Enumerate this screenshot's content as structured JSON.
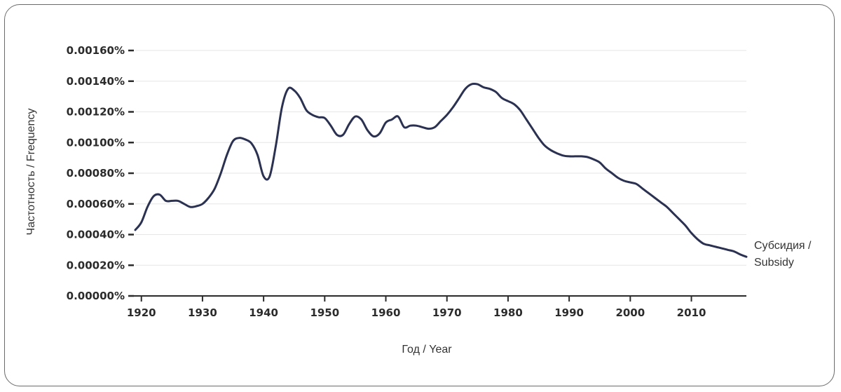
{
  "chart_data": {
    "type": "line",
    "xlabel": "Год / Year",
    "ylabel": "Частотность / Frequency",
    "xlim": [
      1919,
      2019
    ],
    "ylim": [
      0,
      0.0016
    ],
    "y_ticks": [
      "0.00000%",
      "0.00020%",
      "0.00040%",
      "0.00060%",
      "0.00080%",
      "0.00100%",
      "0.00120%",
      "0.00140%",
      "0.00160%"
    ],
    "x_ticks": [
      "1920",
      "1930",
      "1940",
      "1950",
      "1960",
      "1970",
      "1980",
      "1990",
      "2000",
      "2010"
    ],
    "grid": true,
    "colors": {
      "line": "#2b3150",
      "grid": "#e6e6e6",
      "axis": "#2b2b2b"
    },
    "series": [
      {
        "name": "Субсидия / Subsidy",
        "label_lines": [
          "Субсидия /",
          "Subsidy"
        ],
        "x": [
          1919,
          1920,
          1921,
          1922,
          1923,
          1924,
          1925,
          1926,
          1927,
          1928,
          1929,
          1930,
          1931,
          1932,
          1933,
          1934,
          1935,
          1936,
          1937,
          1938,
          1939,
          1940,
          1941,
          1942,
          1943,
          1944,
          1945,
          1946,
          1947,
          1948,
          1949,
          1950,
          1951,
          1952,
          1953,
          1954,
          1955,
          1956,
          1957,
          1958,
          1959,
          1960,
          1961,
          1962,
          1963,
          1964,
          1965,
          1966,
          1967,
          1968,
          1969,
          1970,
          1971,
          1972,
          1973,
          1974,
          1975,
          1976,
          1977,
          1978,
          1979,
          1980,
          1981,
          1982,
          1983,
          1984,
          1985,
          1986,
          1987,
          1988,
          1989,
          1990,
          1991,
          1992,
          1993,
          1994,
          1995,
          1996,
          1997,
          1998,
          1999,
          2000,
          2001,
          2002,
          2003,
          2004,
          2005,
          2006,
          2007,
          2008,
          2009,
          2010,
          2011,
          2012,
          2013,
          2014,
          2015,
          2016,
          2017,
          2018,
          2019
        ],
        "y": [
          0.00043,
          0.00048,
          0.00058,
          0.00065,
          0.00066,
          0.00062,
          0.00062,
          0.00062,
          0.0006,
          0.00058,
          0.000585,
          0.0006,
          0.00064,
          0.0007,
          0.0008,
          0.00092,
          0.00101,
          0.00103,
          0.00102,
          0.000995,
          0.00092,
          0.00078,
          0.00078,
          0.00098,
          0.00123,
          0.00135,
          0.00134,
          0.00129,
          0.00121,
          0.00118,
          0.001165,
          0.00116,
          0.00111,
          0.00105,
          0.00105,
          0.00112,
          0.00117,
          0.00115,
          0.00108,
          0.00104,
          0.00106,
          0.00113,
          0.00115,
          0.00117,
          0.0011,
          0.00111,
          0.00111,
          0.0011,
          0.00109,
          0.0011,
          0.00114,
          0.00118,
          0.00123,
          0.00129,
          0.00135,
          0.00138,
          0.00138,
          0.00136,
          0.00135,
          0.00133,
          0.00129,
          0.00127,
          0.00125,
          0.00121,
          0.00115,
          0.00109,
          0.00103,
          0.00098,
          0.00095,
          0.00093,
          0.000915,
          0.00091,
          0.00091,
          0.00091,
          0.000905,
          0.00089,
          0.00087,
          0.00083,
          0.0008,
          0.00077,
          0.00075,
          0.00074,
          0.00073,
          0.0007,
          0.00067,
          0.00064,
          0.00061,
          0.00058,
          0.00054,
          0.0005,
          0.00046,
          0.00041,
          0.00037,
          0.00034,
          0.00033,
          0.00032,
          0.00031,
          0.0003,
          0.00029,
          0.00027,
          0.000255
        ]
      }
    ]
  }
}
